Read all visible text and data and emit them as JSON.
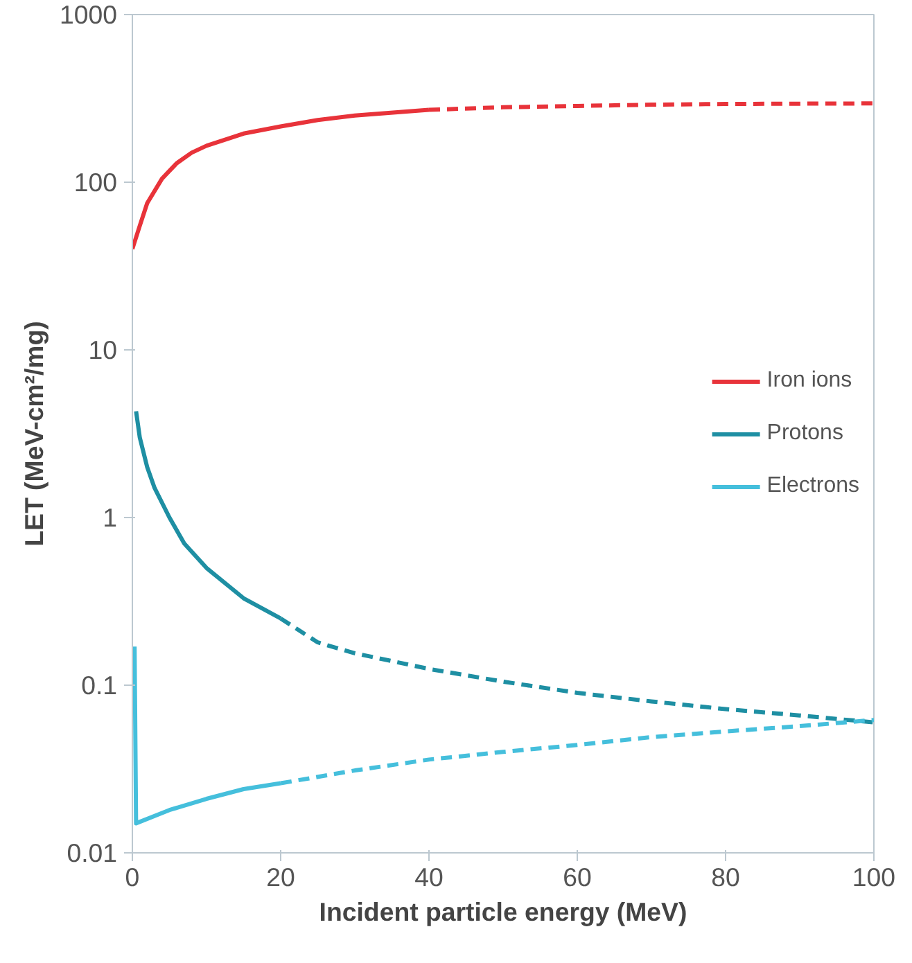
{
  "chart_data": {
    "type": "line",
    "xlabel": "Incident particle energy (MeV)",
    "ylabel": "LET (MeV-cm²/mg)",
    "log": "y",
    "xlim": [
      0,
      100
    ],
    "ylim": [
      0.01,
      1000
    ],
    "xticks": [
      0,
      20,
      40,
      60,
      80,
      100
    ],
    "yticks": [
      0.01,
      0.1,
      1,
      10,
      100,
      1000
    ],
    "grid": false,
    "legend": "right",
    "marker": "none",
    "series": [
      {
        "name": "Iron ions",
        "color": "#e8333a",
        "line_style": "solid",
        "x": [
          0,
          1,
          2,
          4,
          6,
          8,
          10,
          15,
          20,
          25,
          30,
          40
        ],
        "values": [
          40,
          55,
          75,
          105,
          130,
          150,
          165,
          195,
          215,
          235,
          250,
          270
        ]
      },
      {
        "color": "#e8333a",
        "line_style": "dashed",
        "x": [
          40,
          50,
          60,
          70,
          80,
          100
        ],
        "values": [
          270,
          280,
          285,
          290,
          293,
          295
        ]
      },
      {
        "name": "Protons",
        "color": "#1e8fa3",
        "line_style": "solid",
        "x": [
          0.5,
          1,
          2,
          3,
          5,
          7,
          10,
          15,
          20
        ],
        "values": [
          4.3,
          3,
          2,
          1.5,
          1.0,
          0.7,
          0.5,
          0.33,
          0.25
        ]
      },
      {
        "color": "#1e8fa3",
        "line_style": "dashed",
        "x": [
          20,
          25,
          30,
          40,
          50,
          60,
          70,
          80,
          90,
          100
        ],
        "values": [
          0.25,
          0.18,
          0.155,
          0.125,
          0.105,
          0.09,
          0.08,
          0.072,
          0.066,
          0.06
        ]
      },
      {
        "name": "Electrons",
        "color": "#45bfdc",
        "line_style": "solid",
        "x": [
          0.3,
          0.5,
          5,
          10,
          15,
          20
        ],
        "values": [
          0.17,
          0.015,
          0.018,
          0.021,
          0.024,
          0.026
        ]
      },
      {
        "color": "#45bfdc",
        "line_style": "dashed",
        "x": [
          20,
          30,
          40,
          50,
          60,
          70,
          80,
          90,
          100
        ],
        "values": [
          0.026,
          0.031,
          0.036,
          0.04,
          0.044,
          0.049,
          0.053,
          0.057,
          0.062
        ]
      }
    ]
  }
}
